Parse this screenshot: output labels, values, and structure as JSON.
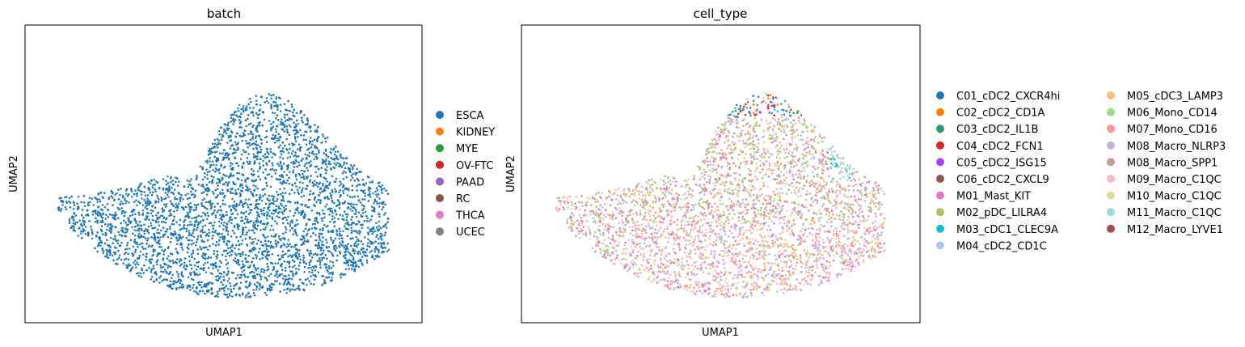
{
  "chart_data": [
    {
      "type": "scatter",
      "title": "batch",
      "xlabel": "UMAP1",
      "ylabel": "UMAP2",
      "grid": false,
      "ticks": false,
      "legend_position": "right",
      "legend_entries": [
        {
          "label": "ESCA",
          "color": "#1f77b4"
        },
        {
          "label": "KIDNEY",
          "color": "#ff7f0e"
        },
        {
          "label": "MYE",
          "color": "#2ca02c"
        },
        {
          "label": "OV-FTC",
          "color": "#d62728"
        },
        {
          "label": "PAAD",
          "color": "#9467bd"
        },
        {
          "label": "RC",
          "color": "#8c564b"
        },
        {
          "label": "THCA",
          "color": "#e377c2"
        },
        {
          "label": "UCEC",
          "color": "#7f7f7f"
        }
      ],
      "series_note": "All visible points belong to ESCA"
    },
    {
      "type": "scatter",
      "title": "cell_type",
      "xlabel": "UMAP1",
      "ylabel": "UMAP2",
      "grid": false,
      "ticks": false,
      "legend_position": "right, two columns",
      "legend_entries": [
        {
          "label": "C01_cDC2_CXCR4hi",
          "color": "#1f77b4"
        },
        {
          "label": "C02_cDC2_CD1A",
          "color": "#ff7f0e"
        },
        {
          "label": "C03_cDC2_IL1B",
          "color": "#279e68"
        },
        {
          "label": "C04_cDC2_FCN1",
          "color": "#d62728"
        },
        {
          "label": "C05_cDC2_ISG15",
          "color": "#aa40fc"
        },
        {
          "label": "C06_cDC2_CXCL9",
          "color": "#8c564b"
        },
        {
          "label": "M01_Mast_KIT",
          "color": "#e377c2"
        },
        {
          "label": "M02_pDC_LILRA4",
          "color": "#b5bd61"
        },
        {
          "label": "M03_cDC1_CLEC9A",
          "color": "#17becf"
        },
        {
          "label": "M04_cDC2_CD1C",
          "color": "#aec7e8"
        },
        {
          "label": "M05_cDC3_LAMP3",
          "color": "#ffbb78"
        },
        {
          "label": "M06_Mono_CD14",
          "color": "#98df8a"
        },
        {
          "label": "M07_Mono_CD16",
          "color": "#ff9896"
        },
        {
          "label": "M08_Macro_NLRP3",
          "color": "#c5b0d5"
        },
        {
          "label": "M08_Macro_SPP1",
          "color": "#c49c94"
        },
        {
          "label": "M09_Macro_C1QC",
          "color": "#f7b6d2"
        },
        {
          "label": "M10_Macro_C1QC",
          "color": "#dbdb8d"
        },
        {
          "label": "M11_Macro_C1QC",
          "color": "#9edae5"
        },
        {
          "label": "M12_Macro_LYVE1",
          "color": "#ad494a"
        }
      ]
    }
  ]
}
